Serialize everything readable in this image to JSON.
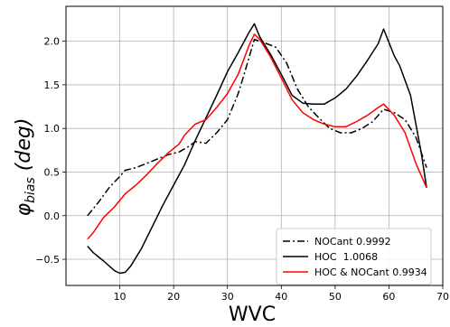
{
  "chart_data": {
    "type": "line",
    "title": "",
    "xlabel": "WVC",
    "ylabel_main": "φ",
    "ylabel_sub": "bias",
    "ylabel_units": "(deg)",
    "xlim": [
      0,
      70
    ],
    "ylim": [
      -0.8,
      2.4
    ],
    "xticks": [
      10,
      20,
      30,
      40,
      50,
      60,
      70
    ],
    "yticks": [
      -0.5,
      0.0,
      0.5,
      1.0,
      1.5,
      2.0
    ],
    "xtick_labels": [
      "10",
      "20",
      "30",
      "40",
      "50",
      "60",
      "70"
    ],
    "ytick_labels": [
      "−0.5",
      "0.0",
      "0.5",
      "1.0",
      "1.5",
      "2.0"
    ],
    "grid": true,
    "legend_position": "lower-right",
    "series": [
      {
        "name": "NOCant 0.9992",
        "color": "#000000",
        "style": "dashdot",
        "x": [
          4,
          6,
          8,
          10,
          11,
          13,
          15,
          17,
          19,
          21,
          23,
          24,
          26,
          28,
          30,
          32,
          33,
          35,
          37,
          39,
          41,
          43,
          45,
          47,
          49,
          51,
          53,
          55,
          57,
          59,
          61,
          63,
          65,
          67
        ],
        "y": [
          0.0,
          0.15,
          0.32,
          0.45,
          0.52,
          0.55,
          0.6,
          0.65,
          0.7,
          0.73,
          0.8,
          0.85,
          0.83,
          0.95,
          1.1,
          1.4,
          1.6,
          2.02,
          1.98,
          1.93,
          1.75,
          1.45,
          1.25,
          1.12,
          1.0,
          0.95,
          0.95,
          1.0,
          1.08,
          1.22,
          1.18,
          1.1,
          0.9,
          0.55
        ]
      },
      {
        "name": "HOC  1.0068",
        "color": "#000000",
        "style": "solid",
        "x": [
          4,
          5,
          7,
          9,
          10,
          11,
          12,
          14,
          16,
          18,
          20,
          22,
          24,
          26,
          28,
          30,
          32,
          34,
          35,
          36,
          38,
          40,
          42,
          44,
          46,
          48,
          50,
          52,
          54,
          56,
          58,
          59,
          61,
          62,
          64,
          66,
          67
        ],
        "y": [
          -0.35,
          -0.42,
          -0.52,
          -0.63,
          -0.66,
          -0.65,
          -0.58,
          -0.38,
          -0.13,
          0.12,
          0.35,
          0.58,
          0.86,
          1.12,
          1.38,
          1.65,
          1.87,
          2.1,
          2.2,
          2.05,
          1.85,
          1.62,
          1.38,
          1.29,
          1.28,
          1.28,
          1.35,
          1.45,
          1.6,
          1.78,
          1.97,
          2.14,
          1.83,
          1.72,
          1.38,
          0.72,
          0.32
        ]
      },
      {
        "name": "HOC & NOCant 0.9934",
        "color": "#ff0000",
        "style": "solid",
        "x": [
          4,
          5,
          7,
          9,
          11,
          13,
          15,
          17,
          19,
          21,
          22,
          24,
          26,
          28,
          30,
          32,
          34,
          35,
          36,
          38,
          40,
          42,
          44,
          46,
          48,
          50,
          52,
          54,
          56,
          58,
          59,
          61,
          63,
          65,
          67
        ],
        "y": [
          -0.27,
          -0.2,
          -0.02,
          0.1,
          0.25,
          0.35,
          0.47,
          0.6,
          0.72,
          0.82,
          0.92,
          1.05,
          1.1,
          1.24,
          1.4,
          1.62,
          1.95,
          2.08,
          2.02,
          1.82,
          1.58,
          1.33,
          1.18,
          1.1,
          1.05,
          1.02,
          1.02,
          1.08,
          1.15,
          1.24,
          1.28,
          1.15,
          0.95,
          0.6,
          0.32
        ]
      }
    ]
  }
}
